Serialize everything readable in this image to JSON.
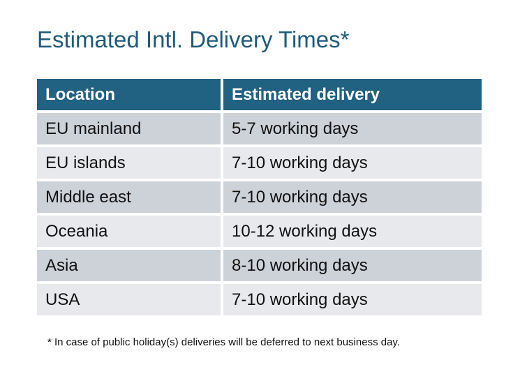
{
  "title": "Estimated Intl. Delivery Times*",
  "table": {
    "headers": [
      "Location",
      "Estimated delivery"
    ],
    "rows": [
      [
        "EU mainland",
        "5-7 working days"
      ],
      [
        "EU islands",
        "7-10 working days"
      ],
      [
        "Middle east",
        "7-10 working days"
      ],
      [
        "Oceania",
        "10-12 working days"
      ],
      [
        "Asia",
        "8-10 working days"
      ],
      [
        "USA",
        "7-10 working days"
      ]
    ]
  },
  "footnote": "* In case of public holiday(s) deliveries will be deferred to next business day.",
  "colors": {
    "header": "#216182",
    "title": "#1f5a7a",
    "row_dark": "#cdd1d8",
    "row_light": "#e7e9ec"
  }
}
